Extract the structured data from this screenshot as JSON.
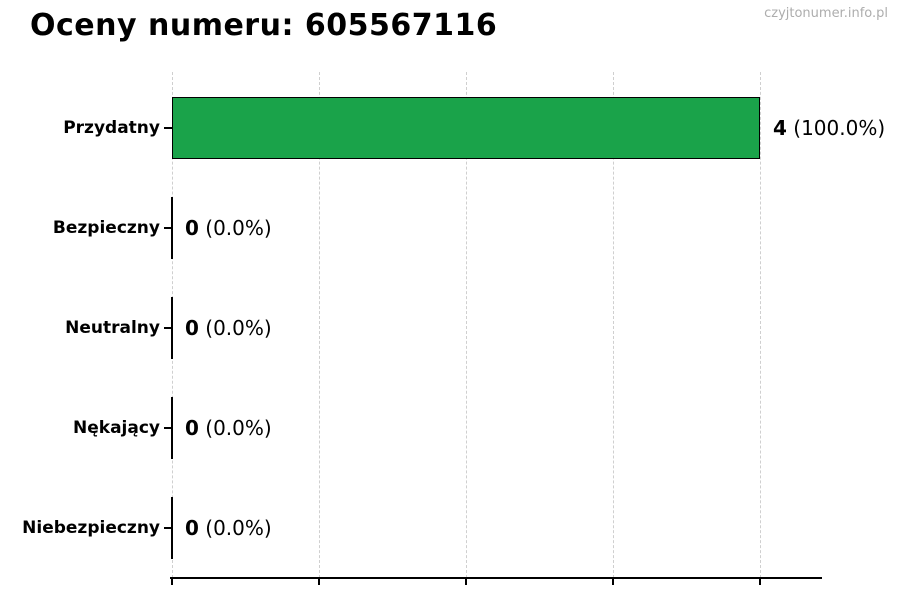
{
  "page": {
    "title": "Oceny numeru: 605567116",
    "watermark": "czyjtonumer.info.pl"
  },
  "colors": {
    "bar_fill": "#1aa34a",
    "bar_edge": "#000000",
    "grid": "#cfcfcf",
    "axis": "#000000",
    "watermark": "#adadad",
    "text": "#000000"
  },
  "chart_data": {
    "type": "bar",
    "orientation": "horizontal",
    "title": "Oceny numeru: 605567116",
    "categories": [
      "Przydatny",
      "Bezpieczny",
      "Neutralny",
      "Nękający",
      "Niebezpieczny"
    ],
    "values": [
      4,
      0,
      0,
      0,
      0
    ],
    "annotations": [
      {
        "count": "4",
        "pct": "(100.0%)"
      },
      {
        "count": "0",
        "pct": "(0.0%)"
      },
      {
        "count": "0",
        "pct": "(0.0%)"
      },
      {
        "count": "0",
        "pct": "(0.0%)"
      },
      {
        "count": "0",
        "pct": "(0.0%)"
      }
    ],
    "xlabel": "",
    "ylabel": "",
    "xlim": [
      0,
      4.42
    ],
    "xticks": [
      0,
      1,
      2,
      3,
      4
    ],
    "x_tick_labels_visible": false,
    "grid": true,
    "grid_style": "dashed-vertical",
    "legend": "none"
  }
}
